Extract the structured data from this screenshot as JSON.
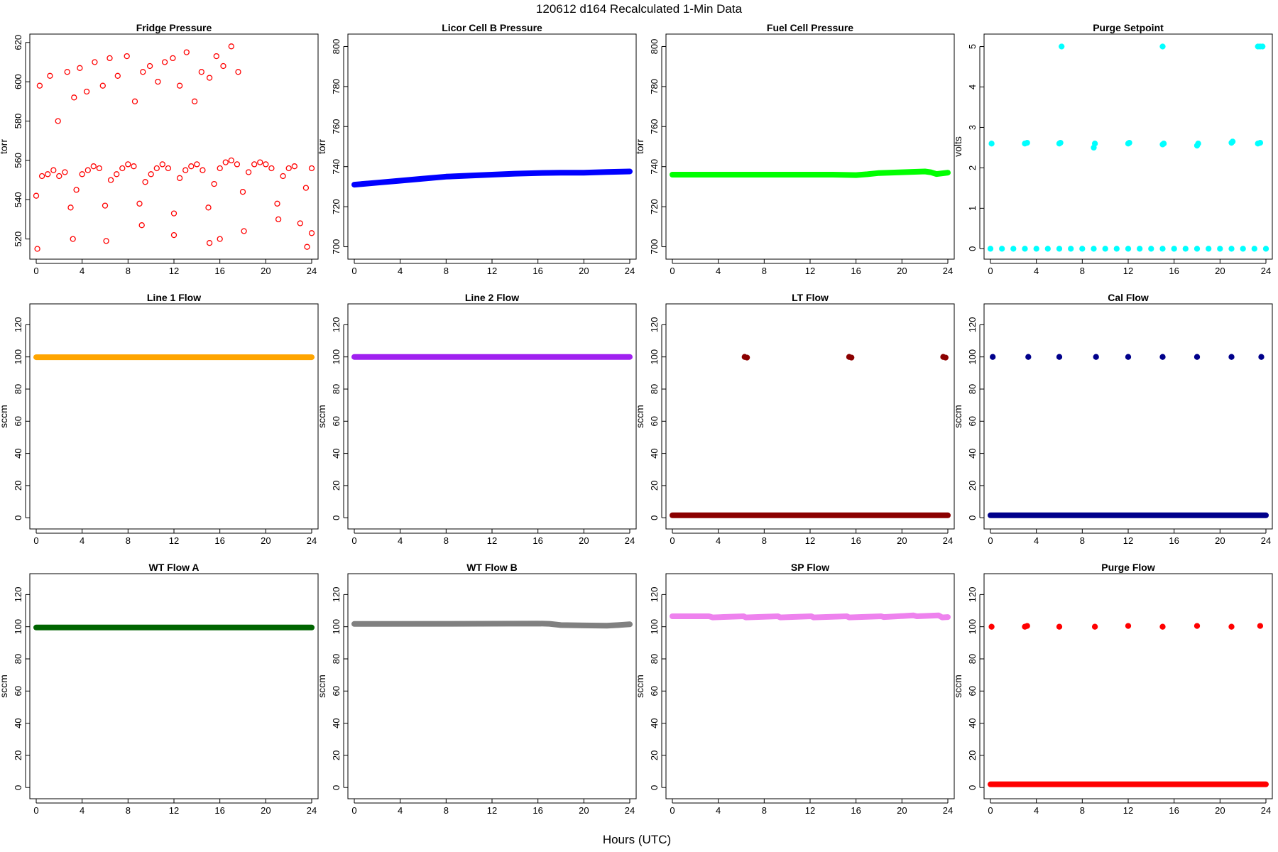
{
  "figure": {
    "title": "120612   d164   Recalculated 1-Min Data",
    "xlabel": "Hours (UTC)"
  },
  "chart_data": [
    {
      "type": "scatter",
      "title": "Fridge Pressure",
      "ylabel": "torr",
      "color": "#ff0000",
      "marker": "open-circle",
      "xlim": [
        0,
        24
      ],
      "xticks": [
        0,
        4,
        8,
        12,
        16,
        20,
        24
      ],
      "ylim": [
        513,
        621
      ],
      "yticks": [
        520,
        540,
        560,
        580,
        600,
        620
      ],
      "series": [
        {
          "x": [
            0,
            0.5,
            1,
            1.5,
            2,
            2.5,
            3,
            3.5,
            4,
            4.5,
            5,
            5.5,
            6,
            6.5,
            7,
            7.5,
            8,
            8.5,
            9,
            9.5,
            10,
            10.5,
            11,
            11.5,
            12,
            12.5,
            13,
            13.5,
            14,
            14.5,
            15,
            15.5,
            16,
            16.5,
            17,
            17.5,
            18,
            18.5,
            19,
            19.5,
            20,
            20.5,
            21,
            21.5,
            22,
            22.5,
            23,
            23.5,
            24
          ],
          "y": [
            542,
            552,
            553,
            555,
            552,
            554,
            536,
            545,
            553,
            555,
            557,
            556,
            537,
            550,
            553,
            556,
            558,
            557,
            538,
            549,
            553,
            556,
            558,
            556,
            533,
            551,
            555,
            557,
            558,
            555,
            536,
            548,
            556,
            559,
            560,
            558,
            544,
            554,
            558,
            559,
            558,
            556,
            538,
            552,
            556,
            557,
            528,
            546,
            556
          ]
        },
        {
          "x": [
            0.3,
            1.2,
            1.9,
            2.7,
            3.3,
            3.8,
            4.4,
            5.1,
            5.8,
            6.4,
            7.1,
            7.9,
            8.6,
            9.3,
            9.9,
            10.6,
            11.2,
            11.9,
            12.5,
            13.1,
            13.8,
            14.4,
            15.1,
            15.7,
            16.3,
            17.0,
            17.6
          ],
          "y": [
            598,
            603,
            580,
            605,
            592,
            607,
            595,
            610,
            598,
            612,
            603,
            613,
            590,
            605,
            608,
            600,
            610,
            612,
            598,
            615,
            590,
            605,
            602,
            613,
            608,
            618,
            605
          ]
        },
        {
          "x": [
            0.1,
            3.2,
            6.1,
            9.2,
            12.0,
            15.1,
            16.0,
            18.1,
            21.1,
            23.6,
            24.0
          ],
          "y": [
            515,
            520,
            519,
            527,
            522,
            518,
            520,
            524,
            530,
            516,
            523
          ]
        }
      ]
    },
    {
      "type": "line",
      "title": "Licor Cell B Pressure",
      "ylabel": "torr",
      "color": "#0000ff",
      "xlim": [
        0,
        24
      ],
      "xticks": [
        0,
        4,
        8,
        12,
        16,
        20,
        24
      ],
      "ylim": [
        697,
        803
      ],
      "yticks": [
        700,
        720,
        740,
        760,
        780,
        800
      ],
      "series": [
        {
          "x": [
            0,
            2,
            4,
            6,
            8,
            10,
            12,
            14,
            16,
            18,
            20,
            22,
            24
          ],
          "y": [
            731,
            732,
            733,
            734,
            735,
            735.5,
            736,
            736.5,
            736.8,
            737,
            737,
            737.3,
            737.6
          ]
        }
      ]
    },
    {
      "type": "line",
      "title": "Fuel Cell Pressure",
      "ylabel": "torr",
      "color": "#00ff00",
      "xlim": [
        0,
        24
      ],
      "xticks": [
        0,
        4,
        8,
        12,
        16,
        20,
        24
      ],
      "ylim": [
        697,
        803
      ],
      "yticks": [
        700,
        720,
        740,
        760,
        780,
        800
      ],
      "series": [
        {
          "x": [
            0,
            2,
            4,
            6,
            8,
            10,
            12,
            14,
            16,
            17,
            18,
            20,
            22,
            22.5,
            23,
            24
          ],
          "y": [
            736,
            736,
            736,
            736,
            736,
            736,
            736,
            736,
            735.8,
            736.2,
            736.8,
            737.2,
            737.6,
            737.2,
            736.3,
            737
          ]
        }
      ]
    },
    {
      "type": "scatter",
      "title": "Purge Setpoint",
      "ylabel": "volts",
      "color": "#00ffff",
      "xlim": [
        0,
        24
      ],
      "xticks": [
        0,
        4,
        8,
        12,
        16,
        20,
        24
      ],
      "ylim": [
        -0.1,
        5.15
      ],
      "yticks": [
        0,
        1,
        2,
        3,
        4,
        5
      ],
      "series": [
        {
          "x": [
            0,
            1,
            2,
            3,
            4,
            5,
            6,
            7,
            8,
            9,
            10,
            11,
            12,
            13,
            14,
            15,
            16,
            17,
            18,
            19,
            20,
            21,
            22,
            23,
            24
          ],
          "y": [
            0,
            0,
            0,
            0,
            0,
            0,
            0,
            0,
            0,
            0,
            0,
            0,
            0,
            0,
            0,
            0,
            0,
            0,
            0,
            0,
            0,
            0,
            0,
            0,
            0
          ]
        },
        {
          "x": [
            0.1,
            3.0,
            3.2,
            6.0,
            6.1,
            9.0,
            9.1,
            12.0,
            12.1,
            15.0,
            15.1,
            18.0,
            18.1,
            21.0,
            21.1,
            23.3,
            23.5
          ],
          "y": [
            2.6,
            2.6,
            2.62,
            2.6,
            2.62,
            2.5,
            2.6,
            2.6,
            2.62,
            2.58,
            2.6,
            2.55,
            2.6,
            2.62,
            2.65,
            2.6,
            2.62
          ]
        },
        {
          "x": [
            6.2,
            15.0,
            23.3,
            23.5,
            23.7
          ],
          "y": [
            5,
            5,
            5,
            5,
            5
          ]
        }
      ]
    },
    {
      "type": "line",
      "title": "Line 1 Flow",
      "ylabel": "sccm",
      "color": "#ffa500",
      "xlim": [
        0,
        24
      ],
      "xticks": [
        0,
        4,
        8,
        12,
        16,
        20,
        24
      ],
      "ylim": [
        -3,
        129
      ],
      "yticks": [
        0,
        20,
        40,
        60,
        80,
        100,
        120
      ],
      "series": [
        {
          "x": [
            0,
            24
          ],
          "y": [
            99.8,
            99.8
          ]
        }
      ]
    },
    {
      "type": "line",
      "title": "Line 2 Flow",
      "ylabel": "sccm",
      "color": "#a020f0",
      "xlim": [
        0,
        24
      ],
      "xticks": [
        0,
        4,
        8,
        12,
        16,
        20,
        24
      ],
      "ylim": [
        -3,
        129
      ],
      "yticks": [
        0,
        20,
        40,
        60,
        80,
        100,
        120
      ],
      "series": [
        {
          "x": [
            0,
            24
          ],
          "y": [
            100,
            100
          ]
        }
      ]
    },
    {
      "type": "scatter",
      "title": "LT Flow",
      "ylabel": "sccm",
      "color": "#8b0000",
      "xlim": [
        0,
        24
      ],
      "xticks": [
        0,
        4,
        8,
        12,
        16,
        20,
        24
      ],
      "ylim": [
        -3,
        129
      ],
      "yticks": [
        0,
        20,
        40,
        60,
        80,
        100,
        120
      ],
      "series": [
        {
          "x": [
            0,
            24
          ],
          "y": [
            1.5,
            1.5
          ]
        },
        {
          "x": [
            6.3,
            6.5,
            15.4,
            15.6,
            23.6,
            23.8
          ],
          "y": [
            100,
            99.6,
            100,
            99.6,
            100,
            99.6
          ]
        }
      ]
    },
    {
      "type": "scatter",
      "title": "Cal Flow",
      "ylabel": "sccm",
      "color": "#00008b",
      "xlim": [
        0,
        24
      ],
      "xticks": [
        0,
        4,
        8,
        12,
        16,
        20,
        24
      ],
      "ylim": [
        -3,
        129
      ],
      "yticks": [
        0,
        20,
        40,
        60,
        80,
        100,
        120
      ],
      "series": [
        {
          "x": [
            0,
            24
          ],
          "y": [
            1.5,
            1.5
          ]
        },
        {
          "x": [
            0.2,
            3.3,
            6.0,
            9.2,
            12.0,
            15.0,
            18.0,
            21.0,
            23.6
          ],
          "y": [
            100,
            100,
            100,
            100,
            100,
            100,
            100,
            100,
            100
          ]
        }
      ]
    },
    {
      "type": "line",
      "title": "WT Flow A",
      "ylabel": "sccm",
      "color": "#006400",
      "xlim": [
        0,
        24
      ],
      "xticks": [
        0,
        4,
        8,
        12,
        16,
        20,
        24
      ],
      "ylim": [
        -3,
        129
      ],
      "yticks": [
        0,
        20,
        40,
        60,
        80,
        100,
        120
      ],
      "series": [
        {
          "x": [
            0,
            24
          ],
          "y": [
            99.5,
            99.5
          ]
        }
      ]
    },
    {
      "type": "line",
      "title": "WT Flow B",
      "ylabel": "sccm",
      "color": "#808080",
      "xlim": [
        0,
        24
      ],
      "xticks": [
        0,
        4,
        8,
        12,
        16,
        20,
        24
      ],
      "ylim": [
        -3,
        129
      ],
      "yticks": [
        0,
        20,
        40,
        60,
        80,
        100,
        120
      ],
      "series": [
        {
          "x": [
            0,
            8,
            16,
            17,
            18,
            20,
            22,
            23,
            24
          ],
          "y": [
            101.7,
            101.8,
            102,
            101.8,
            101,
            100.8,
            100.6,
            101,
            101.5
          ]
        }
      ]
    },
    {
      "type": "line",
      "title": "SP Flow",
      "ylabel": "sccm",
      "color": "#ee82ee",
      "xlim": [
        0,
        24
      ],
      "xticks": [
        0,
        4,
        8,
        12,
        16,
        20,
        24
      ],
      "ylim": [
        -3,
        129
      ],
      "yticks": [
        0,
        20,
        40,
        60,
        80,
        100,
        120
      ],
      "series": [
        {
          "x": [
            0,
            3.2,
            3.5,
            6.2,
            6.4,
            9.2,
            9.4,
            12.1,
            12.3,
            15.2,
            15.4,
            18.2,
            18.4,
            21.0,
            21.3,
            23.2,
            23.5,
            24
          ],
          "y": [
            106.5,
            106.5,
            105.8,
            106.5,
            105.8,
            106.5,
            105.8,
            106.5,
            105.8,
            106.5,
            105.8,
            106.5,
            106,
            107,
            106.5,
            107,
            105.8,
            106
          ]
        }
      ]
    },
    {
      "type": "scatter",
      "title": "Purge Flow",
      "ylabel": "sccm",
      "color": "#ff0000",
      "xlim": [
        0,
        24
      ],
      "xticks": [
        0,
        4,
        8,
        12,
        16,
        20,
        24
      ],
      "ylim": [
        -3,
        129
      ],
      "yticks": [
        0,
        20,
        40,
        60,
        80,
        100,
        120
      ],
      "series": [
        {
          "x": [
            0,
            24
          ],
          "y": [
            2,
            2
          ]
        },
        {
          "x": [
            0.1,
            3.0,
            3.2,
            6.0,
            9.1,
            12.0,
            15.0,
            18.0,
            21.0,
            23.5
          ],
          "y": [
            100,
            100,
            100.5,
            100,
            100,
            100.5,
            100,
            100.5,
            100,
            100.5
          ]
        }
      ]
    }
  ]
}
